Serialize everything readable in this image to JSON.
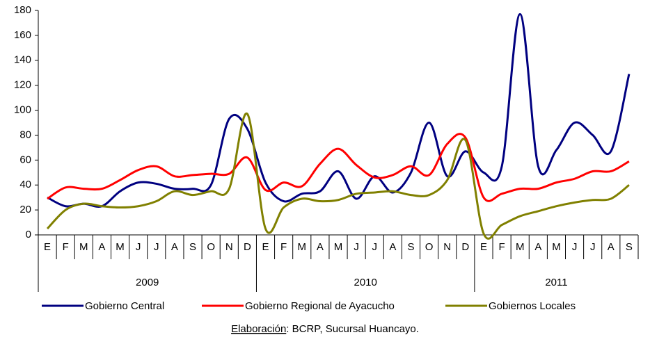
{
  "chart_data": {
    "type": "line",
    "categories": [
      "E",
      "F",
      "M",
      "A",
      "M",
      "J",
      "J",
      "A",
      "S",
      "O",
      "N",
      "D",
      "E",
      "F",
      "M",
      "A",
      "M",
      "J",
      "J",
      "A",
      "S",
      "O",
      "N",
      "D",
      "E",
      "F",
      "M",
      "A",
      "M",
      "J",
      "J",
      "A",
      "S"
    ],
    "years": [
      "2009",
      "2010",
      "2011"
    ],
    "series": [
      {
        "name": "Gobierno Central",
        "color": "#000080",
        "values": [
          30,
          23,
          25,
          23,
          35,
          42,
          41,
          37,
          37,
          40,
          93,
          85,
          42,
          27,
          33,
          35,
          51,
          29,
          47,
          34,
          50,
          90,
          47,
          67,
          50,
          55,
          177,
          55,
          68,
          90,
          80,
          67,
          129
        ]
      },
      {
        "name": "Gobierno Regional de Ayacucho",
        "color": "#ff0000",
        "values": [
          29,
          38,
          37,
          37,
          44,
          52,
          55,
          47,
          48,
          49,
          49,
          62,
          36,
          42,
          39,
          57,
          69,
          56,
          46,
          48,
          55,
          48,
          73,
          78,
          30,
          33,
          37,
          37,
          42,
          45,
          51,
          51,
          59
        ]
      },
      {
        "name": "Gobiernos Locales",
        "color": "#808000",
        "values": [
          5,
          20,
          25,
          23,
          22,
          23,
          27,
          35,
          32,
          35,
          37,
          97,
          5,
          22,
          29,
          27,
          28,
          33,
          34,
          35,
          32,
          32,
          44,
          76,
          1,
          8,
          15,
          19,
          23,
          26,
          28,
          29,
          40
        ]
      }
    ],
    "ylim": [
      0,
      180
    ],
    "yticks": [
      0,
      20,
      40,
      60,
      80,
      100,
      120,
      140,
      160,
      180
    ],
    "grid": false,
    "legend": "bottom",
    "source_label": "Elaboración",
    "source": ": BCRP, Sucursal Huancayo."
  }
}
